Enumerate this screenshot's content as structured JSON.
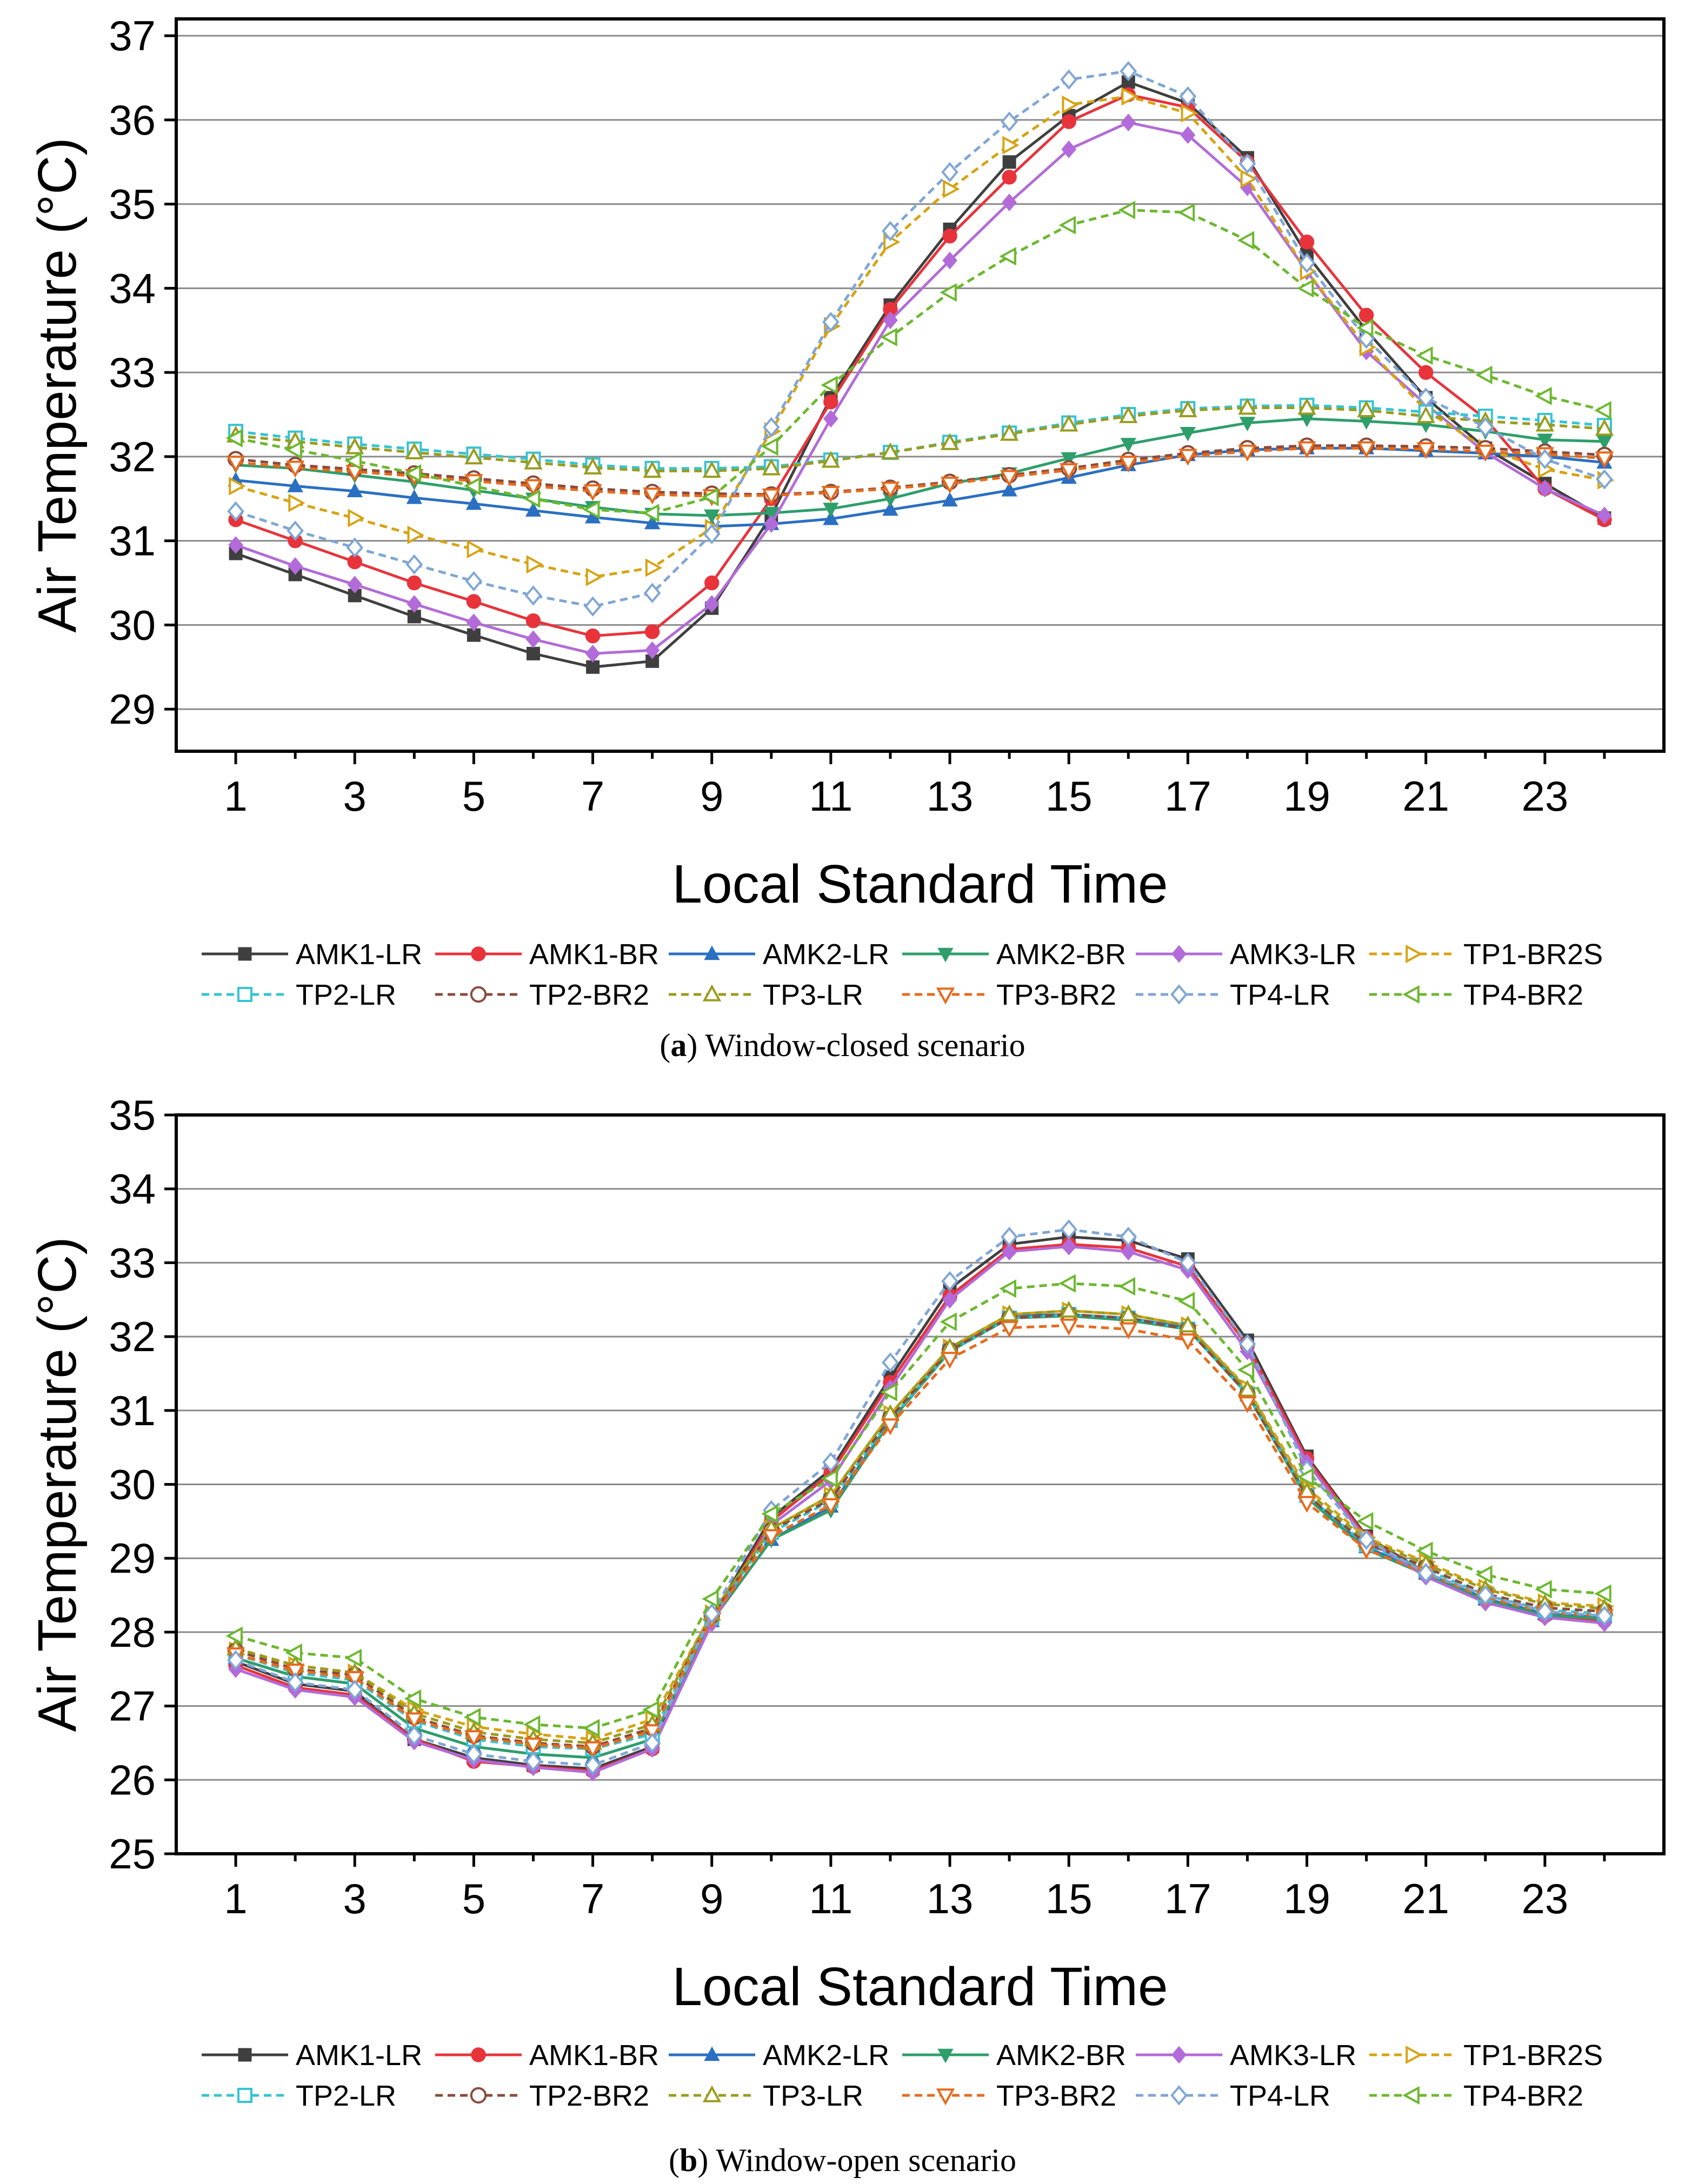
{
  "series_styles": [
    {
      "name": "AMK1-LR",
      "color": "#3f3f3f",
      "dash": "solid",
      "marker": "square",
      "filled": true
    },
    {
      "name": "AMK1-BR",
      "color": "#e8333b",
      "dash": "solid",
      "marker": "circle",
      "filled": true
    },
    {
      "name": "AMK2-LR",
      "color": "#2a6fc2",
      "dash": "solid",
      "marker": "triangle-up",
      "filled": true
    },
    {
      "name": "AMK2-BR",
      "color": "#2e9e6b",
      "dash": "solid",
      "marker": "triangle-down",
      "filled": true
    },
    {
      "name": "AMK3-LR",
      "color": "#b26bd8",
      "dash": "solid",
      "marker": "diamond",
      "filled": true
    },
    {
      "name": "TP1-BR2S",
      "color": "#d7a312",
      "dash": "dashed",
      "marker": "triangle-right",
      "filled": false
    },
    {
      "name": "TP2-LR",
      "color": "#35c4d4",
      "dash": "dashed",
      "marker": "square",
      "filled": false
    },
    {
      "name": "TP2-BR2",
      "color": "#8a4b3c",
      "dash": "dashed",
      "marker": "circle",
      "filled": false
    },
    {
      "name": "TP3-LR",
      "color": "#9a9c1c",
      "dash": "dashed",
      "marker": "triangle-up",
      "filled": false
    },
    {
      "name": "TP3-BR2",
      "color": "#e86a1c",
      "dash": "dashed",
      "marker": "triangle-down",
      "filled": false
    },
    {
      "name": "TP4-LR",
      "color": "#7fa6d6",
      "dash": "dashed",
      "marker": "diamond",
      "filled": false
    },
    {
      "name": "TP4-BR2",
      "color": "#6bb82e",
      "dash": "dashed",
      "marker": "triangle-left",
      "filled": false
    }
  ],
  "chart_data": [
    {
      "type": "line",
      "panel_label": "(a)",
      "caption_text": " Window-closed scenario",
      "xlabel": "Local Standard Time",
      "ylabel": "Air Temperature (°C)",
      "xlim": [
        0,
        25
      ],
      "ylim": [
        28.5,
        37.2
      ],
      "x_ticks": [
        "1",
        "3",
        "5",
        "7",
        "9",
        "11",
        "13",
        "15",
        "17",
        "19",
        "21",
        "23"
      ],
      "y_ticks": [
        "29",
        "30",
        "31",
        "32",
        "33",
        "34",
        "35",
        "36",
        "37"
      ],
      "grid": true,
      "x": [
        1,
        2,
        3,
        4,
        5,
        6,
        7,
        8,
        9,
        10,
        11,
        12,
        13,
        14,
        15,
        16,
        17,
        18,
        19,
        20,
        21,
        22,
        23,
        24
      ],
      "series": [
        {
          "name": "AMK1-LR",
          "values": [
            30.85,
            30.6,
            30.35,
            30.1,
            29.88,
            29.66,
            29.5,
            29.57,
            30.2,
            31.3,
            32.7,
            33.8,
            34.7,
            35.5,
            36.05,
            36.45,
            36.2,
            35.55,
            34.4,
            33.5,
            32.7,
            32.1,
            31.68,
            31.27
          ]
        },
        {
          "name": "AMK1-BR",
          "values": [
            31.25,
            31.0,
            30.75,
            30.5,
            30.28,
            30.05,
            29.87,
            29.92,
            30.5,
            31.5,
            32.65,
            33.75,
            34.62,
            35.32,
            35.98,
            36.3,
            36.15,
            35.5,
            34.55,
            33.68,
            33.0,
            32.45,
            31.62,
            31.25
          ]
        },
        {
          "name": "AMK2-LR",
          "values": [
            31.72,
            31.65,
            31.59,
            31.51,
            31.44,
            31.36,
            31.28,
            31.21,
            31.17,
            31.2,
            31.26,
            31.37,
            31.48,
            31.6,
            31.75,
            31.9,
            32.02,
            32.08,
            32.1,
            32.1,
            32.07,
            32.04,
            32.0,
            31.93
          ]
        },
        {
          "name": "AMK2-BR",
          "values": [
            31.9,
            31.86,
            31.78,
            31.7,
            31.6,
            31.5,
            31.4,
            31.32,
            31.3,
            31.33,
            31.38,
            31.5,
            31.68,
            31.8,
            31.98,
            32.15,
            32.28,
            32.4,
            32.45,
            32.42,
            32.38,
            32.3,
            32.2,
            32.18
          ]
        },
        {
          "name": "AMK3-LR",
          "values": [
            30.95,
            30.7,
            30.48,
            30.25,
            30.03,
            29.83,
            29.66,
            29.7,
            30.25,
            31.2,
            32.45,
            33.62,
            34.33,
            35.02,
            35.65,
            35.97,
            35.82,
            35.2,
            34.2,
            33.25,
            32.62,
            32.05,
            31.62,
            31.3
          ]
        },
        {
          "name": "TP1-BR2S",
          "values": [
            31.65,
            31.45,
            31.27,
            31.07,
            30.9,
            30.72,
            30.57,
            30.68,
            31.15,
            32.3,
            33.55,
            34.55,
            35.18,
            35.7,
            36.18,
            36.28,
            36.08,
            35.3,
            34.2,
            33.3,
            32.55,
            32.1,
            31.85,
            31.72
          ]
        },
        {
          "name": "TP2-LR",
          "values": [
            32.3,
            32.22,
            32.15,
            32.09,
            32.03,
            31.97,
            31.9,
            31.86,
            31.86,
            31.88,
            31.96,
            32.05,
            32.17,
            32.28,
            32.4,
            32.5,
            32.57,
            32.6,
            32.61,
            32.58,
            32.53,
            32.48,
            32.43,
            32.37
          ]
        },
        {
          "name": "TP2-BR2",
          "values": [
            31.97,
            31.9,
            31.85,
            31.8,
            31.74,
            31.68,
            31.62,
            31.58,
            31.56,
            31.55,
            31.58,
            31.63,
            31.7,
            31.78,
            31.86,
            31.96,
            32.04,
            32.1,
            32.13,
            32.13,
            32.12,
            32.1,
            32.06,
            32.02
          ]
        },
        {
          "name": "TP3-LR",
          "values": [
            32.25,
            32.18,
            32.11,
            32.05,
            31.99,
            31.93,
            31.87,
            31.83,
            31.83,
            31.86,
            31.95,
            32.05,
            32.16,
            32.27,
            32.38,
            32.48,
            32.55,
            32.58,
            32.58,
            32.55,
            32.48,
            32.42,
            32.38,
            32.33
          ]
        },
        {
          "name": "TP3-BR2",
          "values": [
            31.93,
            31.87,
            31.82,
            31.77,
            31.71,
            31.65,
            31.59,
            31.55,
            31.53,
            31.54,
            31.57,
            31.62,
            31.68,
            31.76,
            31.84,
            31.93,
            32.01,
            32.06,
            32.1,
            32.1,
            32.09,
            32.06,
            32.03,
            31.98
          ]
        },
        {
          "name": "TP4-LR",
          "values": [
            31.35,
            31.12,
            30.92,
            30.72,
            30.52,
            30.35,
            30.22,
            30.38,
            31.08,
            32.35,
            33.6,
            34.68,
            35.38,
            35.98,
            36.48,
            36.58,
            36.28,
            35.48,
            34.3,
            33.4,
            32.7,
            32.35,
            31.97,
            31.73
          ]
        },
        {
          "name": "TP4-BR2",
          "values": [
            32.22,
            32.08,
            31.95,
            31.8,
            31.65,
            31.5,
            31.37,
            31.33,
            31.52,
            32.12,
            32.85,
            33.42,
            33.95,
            34.38,
            34.75,
            34.93,
            34.9,
            34.57,
            34.0,
            33.53,
            33.2,
            32.97,
            32.72,
            32.55
          ]
        }
      ]
    },
    {
      "type": "line",
      "panel_label": "(b)",
      "caption_text": " Window-open scenario",
      "xlabel": "Local Standard Time",
      "ylabel": "Air Temperature (°C)",
      "xlim": [
        0,
        25
      ],
      "ylim": [
        25,
        35
      ],
      "x_ticks": [
        "1",
        "3",
        "5",
        "7",
        "9",
        "11",
        "13",
        "15",
        "17",
        "19",
        "21",
        "23"
      ],
      "y_ticks": [
        "25",
        "26",
        "27",
        "28",
        "29",
        "30",
        "31",
        "32",
        "33",
        "34",
        "35"
      ],
      "grid": true,
      "x": [
        1,
        2,
        3,
        4,
        5,
        6,
        7,
        8,
        9,
        10,
        11,
        12,
        13,
        14,
        15,
        16,
        17,
        18,
        19,
        20,
        21,
        22,
        23,
        24
      ],
      "series": [
        {
          "name": "AMK1-LR",
          "values": [
            27.6,
            27.3,
            27.2,
            26.55,
            26.3,
            26.2,
            26.15,
            26.45,
            28.2,
            29.55,
            30.2,
            31.45,
            32.65,
            33.25,
            33.35,
            33.3,
            33.05,
            31.95,
            30.38,
            29.3,
            28.8,
            28.45,
            28.25,
            28.2
          ]
        },
        {
          "name": "AMK1-BR",
          "values": [
            27.55,
            27.25,
            27.15,
            26.55,
            26.25,
            26.18,
            26.12,
            26.42,
            28.15,
            29.5,
            30.15,
            31.38,
            32.55,
            33.18,
            33.25,
            33.2,
            32.95,
            31.88,
            30.35,
            29.28,
            28.78,
            28.45,
            28.22,
            28.15
          ]
        },
        {
          "name": "AMK2-LR",
          "values": [
            27.65,
            27.4,
            27.3,
            26.7,
            26.45,
            26.35,
            26.3,
            26.55,
            28.15,
            29.25,
            29.7,
            30.85,
            31.82,
            32.28,
            32.3,
            32.25,
            32.12,
            31.25,
            29.85,
            29.15,
            28.8,
            28.45,
            28.25,
            28.2
          ]
        },
        {
          "name": "AMK2-BR",
          "values": [
            27.65,
            27.4,
            27.3,
            26.7,
            26.45,
            26.35,
            26.3,
            26.55,
            28.15,
            29.25,
            29.65,
            30.85,
            31.8,
            32.25,
            32.28,
            32.22,
            32.1,
            31.22,
            29.82,
            29.12,
            28.78,
            28.43,
            28.23,
            28.18
          ]
        },
        {
          "name": "AMK3-LR",
          "values": [
            27.5,
            27.22,
            27.12,
            26.52,
            26.27,
            26.17,
            26.1,
            26.42,
            28.12,
            29.45,
            30.05,
            31.3,
            32.5,
            33.15,
            33.22,
            33.15,
            32.9,
            31.8,
            30.3,
            29.25,
            28.75,
            28.4,
            28.2,
            28.12
          ]
        },
        {
          "name": "TP1-BR2S",
          "values": [
            27.75,
            27.55,
            27.45,
            26.95,
            26.72,
            26.62,
            26.55,
            26.82,
            28.25,
            29.4,
            29.85,
            30.95,
            31.85,
            32.3,
            32.35,
            32.3,
            32.15,
            31.3,
            29.95,
            29.28,
            28.95,
            28.6,
            28.4,
            28.35
          ]
        },
        {
          "name": "TP2-LR",
          "values": [
            27.7,
            27.45,
            27.35,
            26.8,
            26.55,
            26.45,
            26.42,
            26.62,
            28.2,
            29.35,
            29.78,
            30.88,
            31.8,
            32.25,
            32.3,
            32.25,
            32.1,
            31.22,
            29.85,
            29.18,
            28.85,
            28.5,
            28.3,
            28.25
          ]
        },
        {
          "name": "TP2-BR2",
          "values": [
            27.75,
            27.5,
            27.42,
            26.85,
            26.6,
            26.5,
            26.45,
            26.7,
            28.22,
            29.38,
            29.8,
            30.9,
            31.82,
            32.25,
            32.3,
            32.25,
            32.1,
            31.22,
            29.85,
            29.2,
            28.88,
            28.52,
            28.33,
            28.28
          ]
        },
        {
          "name": "TP3-LR",
          "values": [
            27.78,
            27.55,
            27.45,
            26.9,
            26.65,
            26.55,
            26.5,
            26.75,
            28.25,
            29.4,
            29.85,
            30.95,
            31.85,
            32.3,
            32.35,
            32.3,
            32.15,
            31.28,
            29.9,
            29.25,
            28.92,
            28.58,
            28.38,
            28.32
          ]
        },
        {
          "name": "TP3-BR2",
          "values": [
            27.7,
            27.48,
            27.38,
            26.82,
            26.58,
            26.48,
            26.43,
            26.66,
            28.18,
            29.3,
            29.72,
            30.8,
            31.7,
            32.12,
            32.15,
            32.1,
            31.95,
            31.1,
            29.75,
            29.12,
            28.8,
            28.47,
            28.27,
            28.22
          ]
        },
        {
          "name": "TP4-LR",
          "values": [
            27.62,
            27.32,
            27.22,
            26.6,
            26.35,
            26.25,
            26.2,
            26.5,
            28.25,
            29.65,
            30.3,
            31.65,
            32.75,
            33.35,
            33.45,
            33.35,
            33.0,
            31.9,
            30.2,
            29.25,
            28.8,
            28.5,
            28.28,
            28.22
          ]
        },
        {
          "name": "TP4-BR2",
          "values": [
            27.95,
            27.72,
            27.65,
            27.1,
            26.85,
            26.75,
            26.7,
            26.95,
            28.45,
            29.6,
            30.08,
            31.25,
            32.2,
            32.65,
            32.72,
            32.68,
            32.48,
            31.55,
            30.1,
            29.5,
            29.1,
            28.78,
            28.58,
            28.52
          ]
        }
      ]
    }
  ]
}
